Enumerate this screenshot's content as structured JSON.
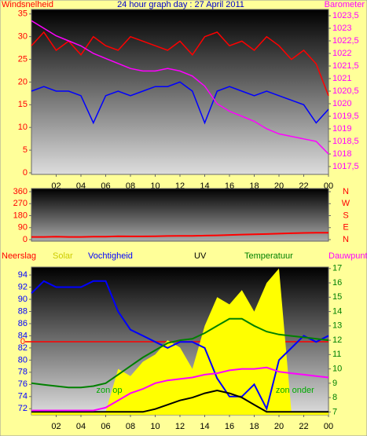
{
  "chart_data": [
    {
      "type": "line",
      "title": "24 hour graph day : 27 April 2011",
      "ylabel": "Windsnelheid",
      "y2label": "Barometer",
      "x": [
        0,
        1,
        2,
        3,
        4,
        5,
        6,
        7,
        8,
        9,
        10,
        11,
        12,
        13,
        14,
        15,
        16,
        17,
        18,
        19,
        20,
        21,
        22,
        23,
        24
      ],
      "xlim": [
        0,
        24
      ],
      "xticks": [
        {
          "value": 2,
          "label": "02"
        },
        {
          "value": 4,
          "label": "04"
        },
        {
          "value": 6,
          "label": "06"
        },
        {
          "value": 8,
          "label": "08"
        },
        10,
        12,
        14,
        16,
        18,
        20,
        22,
        {
          "value": 24,
          "label": "00"
        }
      ],
      "ylim": [
        0,
        36
      ],
      "yticks": [
        0,
        5,
        10,
        15,
        20,
        25,
        30,
        35
      ],
      "y2lim": [
        1017.25,
        1023.75
      ],
      "y2ticks": [
        {
          "value": 1017.5,
          "label": "1017,5"
        },
        1018,
        {
          "value": 1018.5,
          "label": "1018,5"
        },
        1019,
        {
          "value": 1019.5,
          "label": "1019,5"
        },
        1020,
        {
          "value": 1020.5,
          "label": "1020,5"
        },
        1021,
        {
          "value": 1021.5,
          "label": "1021,5"
        },
        1022,
        {
          "value": 1022.5,
          "label": "1022,5"
        },
        1023,
        {
          "value": 1023.5,
          "label": "1023,5"
        }
      ],
      "series": [
        {
          "color": "#ff0000",
          "values": [
            28,
            31,
            27,
            29,
            26,
            30,
            28,
            27,
            30,
            29,
            28,
            27,
            29,
            26,
            30,
            31,
            28,
            29,
            27,
            30,
            28,
            25,
            27,
            24,
            17
          ]
        },
        {
          "color": "#0000ff",
          "values": [
            18,
            19,
            18,
            18,
            17,
            11,
            17,
            18,
            17,
            18,
            19,
            19,
            20,
            18,
            11,
            18,
            19,
            18,
            17,
            18,
            17,
            16,
            15,
            11,
            14
          ]
        },
        {
          "color": "#ff00ff",
          "axis": "y2",
          "values": [
            1023.3,
            1023.0,
            1022.7,
            1022.5,
            1022.3,
            1022.0,
            1021.8,
            1021.6,
            1021.4,
            1021.3,
            1021.3,
            1021.4,
            1021.3,
            1021.1,
            1020.7,
            1020.0,
            1019.7,
            1019.5,
            1019.3,
            1019.0,
            1018.8,
            1018.7,
            1018.6,
            1018.5,
            1018.0
          ]
        }
      ]
    },
    {
      "type": "line",
      "x": [
        0,
        1,
        2,
        3,
        4,
        5,
        6,
        7,
        8,
        9,
        10,
        11,
        12,
        13,
        14,
        15,
        16,
        17,
        18,
        19,
        20,
        21,
        22,
        23,
        24
      ],
      "xlim": [
        0,
        24
      ],
      "ylim": [
        0,
        360
      ],
      "yticks": [
        0,
        90,
        180,
        270,
        360
      ],
      "y2ticks": [
        {
          "value": 360,
          "label": "N"
        },
        {
          "value": 270,
          "label": "W"
        },
        {
          "value": 180,
          "label": "S"
        },
        {
          "value": 90,
          "label": "E"
        },
        {
          "value": 0,
          "label": "N"
        }
      ],
      "series": [
        {
          "color": "#ff0000",
          "values": [
            20,
            20,
            22,
            20,
            20,
            22,
            22,
            25,
            24,
            24,
            25,
            27,
            28,
            28,
            30,
            32,
            35,
            38,
            40,
            42,
            45,
            48,
            50,
            52,
            52
          ]
        }
      ]
    },
    {
      "type": "line",
      "rainlabel": "Neerslag",
      "rainticks": [
        0
      ],
      "x": [
        0,
        1,
        2,
        3,
        4,
        5,
        6,
        7,
        8,
        9,
        10,
        11,
        12,
        13,
        14,
        15,
        16,
        17,
        18,
        19,
        20,
        21,
        22,
        23,
        24
      ],
      "xlim": [
        0,
        24
      ],
      "xticks": [
        {
          "value": 2,
          "label": "02"
        },
        {
          "value": 4,
          "label": "04"
        },
        {
          "value": 6,
          "label": "06"
        },
        {
          "value": 8,
          "label": "08"
        },
        10,
        12,
        14,
        16,
        18,
        20,
        22,
        {
          "value": 24,
          "label": "00"
        }
      ],
      "ylim": [
        71,
        95.3
      ],
      "yticks": [
        72,
        74,
        76,
        78,
        80,
        82,
        84,
        86,
        88,
        90,
        92,
        94
      ],
      "y2lim": [
        6.8,
        17.1
      ],
      "y2ticks": [
        7,
        8,
        9,
        10,
        11,
        12,
        13,
        14,
        15,
        16,
        17
      ],
      "annotations": [
        {
          "text": "zon op",
          "x": 6
        },
        {
          "text": "zon onder",
          "x": 20.5
        }
      ],
      "series": [
        {
          "name": "Solar",
          "color": "#ffff00",
          "axis": "y2",
          "style": "area",
          "values": [
            7,
            7,
            7,
            7,
            7,
            7,
            7,
            10,
            9.5,
            10.5,
            11,
            12,
            11.5,
            10,
            13,
            15,
            14.5,
            15.5,
            14,
            16,
            17,
            7,
            7,
            7,
            7
          ]
        },
        {
          "name": "Vochtigheid",
          "color": "#0000ff",
          "values": [
            91,
            93,
            92,
            92,
            92,
            93,
            93,
            88,
            85,
            84,
            83,
            82,
            83,
            83,
            82,
            77,
            74,
            74,
            76,
            72,
            80,
            82,
            84,
            83,
            84
          ]
        },
        {
          "name": "UV",
          "color": "#000000",
          "axis": "y2",
          "values": [
            7,
            7,
            7,
            7,
            7,
            7,
            7,
            7,
            7,
            7,
            7.2,
            7.5,
            7.8,
            8.0,
            8.3,
            8.5,
            8.3,
            8.0,
            7.5,
            7,
            7,
            7,
            7,
            7,
            7
          ]
        },
        {
          "name": "Temperatuur",
          "color": "#008000",
          "axis": "y2",
          "values": [
            9.0,
            8.9,
            8.8,
            8.7,
            8.7,
            8.8,
            9.0,
            9.6,
            10.2,
            10.8,
            11.3,
            11.8,
            12.0,
            12.1,
            12.5,
            13.0,
            13.5,
            13.5,
            13.0,
            12.6,
            12.4,
            12.3,
            12.2,
            12.1,
            12.0
          ]
        },
        {
          "name": "Dauwpunt",
          "color": "#ff00ff",
          "axis": "y2",
          "values": [
            7.1,
            7.1,
            7.1,
            7.1,
            7.1,
            7.1,
            7.3,
            7.8,
            8.3,
            8.6,
            9.0,
            9.2,
            9.3,
            9.4,
            9.6,
            9.7,
            9.9,
            10.0,
            10.0,
            10.1,
            9.8,
            9.7,
            9.6,
            9.5,
            9.4
          ]
        }
      ]
    }
  ]
}
